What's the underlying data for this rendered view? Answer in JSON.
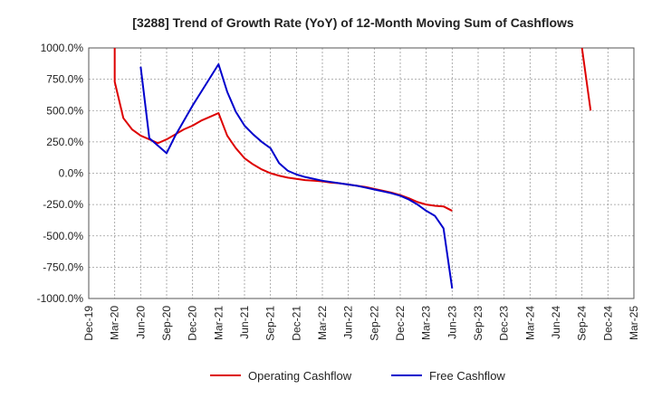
{
  "chart_data": {
    "type": "line",
    "title": "[3288]  Trend of Growth Rate (YoY) of 12-Month Moving Sum of Cashflows",
    "xlabel": "",
    "ylabel": "",
    "x_ticks": [
      "Dec-19",
      "Mar-20",
      "Jun-20",
      "Sep-20",
      "Dec-20",
      "Mar-21",
      "Jun-21",
      "Sep-21",
      "Dec-21",
      "Mar-22",
      "Jun-22",
      "Sep-22",
      "Dec-22",
      "Mar-23",
      "Jun-23",
      "Sep-23",
      "Dec-23",
      "Mar-24",
      "Jun-24",
      "Sep-24",
      "Dec-24",
      "Mar-25"
    ],
    "y_ticks": [
      "1000.0%",
      "750.0%",
      "500.0%",
      "250.0%",
      "0.0%",
      "-250.0%",
      "-500.0%",
      "-750.0%",
      "-1000.0%"
    ],
    "ylim": [
      -1000,
      1000
    ],
    "grid": true,
    "legend_position": "bottom",
    "series": [
      {
        "name": "Operating Cashflow",
        "color": "#dd0000",
        "points": [
          [
            "Mar-20",
            1000
          ],
          [
            "Mar-20",
            730
          ],
          [
            "Apr-20",
            440
          ],
          [
            "May-20",
            350
          ],
          [
            "Jun-20",
            300
          ],
          [
            "Jul-20",
            270
          ],
          [
            "Aug-20",
            240
          ],
          [
            "Sep-20",
            270
          ],
          [
            "Oct-20",
            310
          ],
          [
            "Nov-20",
            350
          ],
          [
            "Dec-20",
            380
          ],
          [
            "Jan-21",
            420
          ],
          [
            "Feb-21",
            450
          ],
          [
            "Mar-21",
            480
          ],
          [
            "Apr-21",
            300
          ],
          [
            "May-21",
            200
          ],
          [
            "Jun-21",
            120
          ],
          [
            "Jul-21",
            70
          ],
          [
            "Aug-21",
            30
          ],
          [
            "Sep-21",
            0
          ],
          [
            "Oct-21",
            -20
          ],
          [
            "Nov-21",
            -35
          ],
          [
            "Dec-21",
            -45
          ],
          [
            "Jan-22",
            -55
          ],
          [
            "Feb-22",
            -60
          ],
          [
            "Mar-22",
            -65
          ],
          [
            "Apr-22",
            -75
          ],
          [
            "May-22",
            -80
          ],
          [
            "Jun-22",
            -90
          ],
          [
            "Jul-22",
            -100
          ],
          [
            "Aug-22",
            -110
          ],
          [
            "Sep-22",
            -125
          ],
          [
            "Oct-22",
            -140
          ],
          [
            "Nov-22",
            -155
          ],
          [
            "Dec-22",
            -175
          ],
          [
            "Jan-23",
            -200
          ],
          [
            "Feb-23",
            -230
          ],
          [
            "Mar-23",
            -250
          ],
          [
            "Apr-23",
            -260
          ],
          [
            "May-23",
            -265
          ],
          [
            "Jun-23",
            -300
          ]
        ],
        "segments": [
          [
            [
              "Sep-24",
              1000
            ],
            [
              "Oct-24",
              500
            ]
          ]
        ]
      },
      {
        "name": "Free Cashflow",
        "color": "#0000cc",
        "points": [
          [
            "Jun-20",
            850
          ],
          [
            "Jul-20",
            280
          ],
          [
            "Sep-20",
            160
          ],
          [
            "Oct-20",
            300
          ],
          [
            "Nov-20",
            420
          ],
          [
            "Dec-20",
            540
          ],
          [
            "Jan-21",
            650
          ],
          [
            "Feb-21",
            760
          ],
          [
            "Mar-21",
            870
          ],
          [
            "Apr-21",
            650
          ],
          [
            "May-21",
            490
          ],
          [
            "Jun-21",
            380
          ],
          [
            "Jul-21",
            310
          ],
          [
            "Aug-21",
            250
          ],
          [
            "Sep-21",
            200
          ],
          [
            "Oct-21",
            80
          ],
          [
            "Nov-21",
            20
          ],
          [
            "Dec-21",
            -10
          ],
          [
            "Jan-22",
            -30
          ],
          [
            "Feb-22",
            -45
          ],
          [
            "Mar-22",
            -60
          ],
          [
            "Apr-22",
            -70
          ],
          [
            "May-22",
            -80
          ],
          [
            "Jun-22",
            -90
          ],
          [
            "Jul-22",
            -100
          ],
          [
            "Aug-22",
            -115
          ],
          [
            "Sep-22",
            -130
          ],
          [
            "Oct-22",
            -145
          ],
          [
            "Nov-22",
            -160
          ],
          [
            "Dec-22",
            -180
          ],
          [
            "Jan-23",
            -210
          ],
          [
            "Feb-23",
            -250
          ],
          [
            "Mar-23",
            -300
          ],
          [
            "Apr-23",
            -340
          ],
          [
            "May-23",
            -440
          ],
          [
            "Jun-23",
            -920
          ]
        ],
        "segments": []
      }
    ]
  }
}
